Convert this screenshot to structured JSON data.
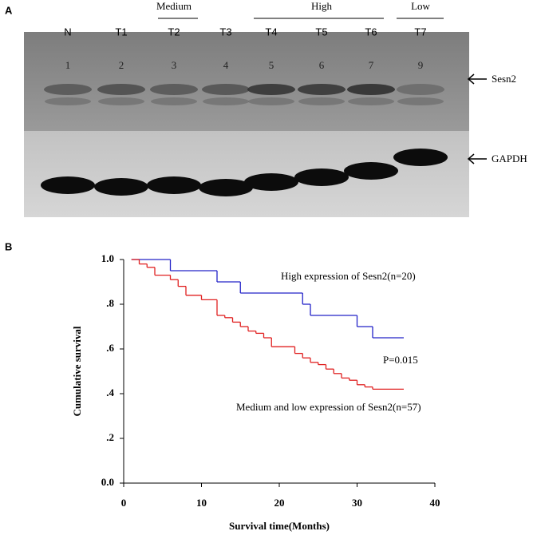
{
  "panel_a": {
    "label": "A",
    "groups": [
      "Medium",
      "High",
      "Low"
    ],
    "lanes": [
      "N",
      "T1",
      "T2",
      "T3",
      "T4",
      "T5",
      "T6",
      "T7"
    ],
    "lane_numbers": [
      "1",
      "2",
      "3",
      "4",
      "5",
      "6",
      "7",
      "9"
    ],
    "bands": [
      "Sesn2",
      "GAPDH"
    ]
  },
  "chart_data": {
    "type": "step",
    "panel_label": "B",
    "xlabel": "Survival time(Months)",
    "ylabel": "Cumulative survival",
    "xlim": [
      0,
      40
    ],
    "ylim": [
      0,
      1
    ],
    "xticks": [
      0,
      10,
      20,
      30,
      40
    ],
    "yticks": [
      {
        "value": 0,
        "label": "0.0"
      },
      {
        "value": 0.2,
        "label": ".2"
      },
      {
        "value": 0.4,
        "label": ".4"
      },
      {
        "value": 0.6,
        "label": ".6"
      },
      {
        "value": 0.8,
        "label": ".8"
      },
      {
        "value": 1,
        "label": "1.0"
      }
    ],
    "annotations": [
      "P=0.015"
    ],
    "series": [
      {
        "name": "High expression of Sesn2(n=20)",
        "color": "#2323c8",
        "x": [
          1,
          6,
          12,
          15,
          23,
          24,
          30,
          32,
          36
        ],
        "values": [
          1,
          0.95,
          0.9,
          0.85,
          0.8,
          0.75,
          0.7,
          0.65,
          0.65
        ]
      },
      {
        "name": "Medium and low expression of Sesn2(n=57)",
        "color": "#e02020",
        "x": [
          1,
          2,
          3,
          4,
          6,
          7,
          8,
          10,
          12,
          13,
          14,
          15,
          16,
          17,
          18,
          19,
          22,
          23,
          24,
          25,
          26,
          27,
          28,
          29,
          30,
          31,
          32,
          36
        ],
        "values": [
          1,
          0.98,
          0.965,
          0.93,
          0.91,
          0.88,
          0.84,
          0.82,
          0.75,
          0.74,
          0.72,
          0.7,
          0.68,
          0.67,
          0.65,
          0.61,
          0.58,
          0.56,
          0.54,
          0.53,
          0.51,
          0.49,
          0.47,
          0.46,
          0.44,
          0.43,
          0.42,
          0.42
        ]
      }
    ]
  }
}
